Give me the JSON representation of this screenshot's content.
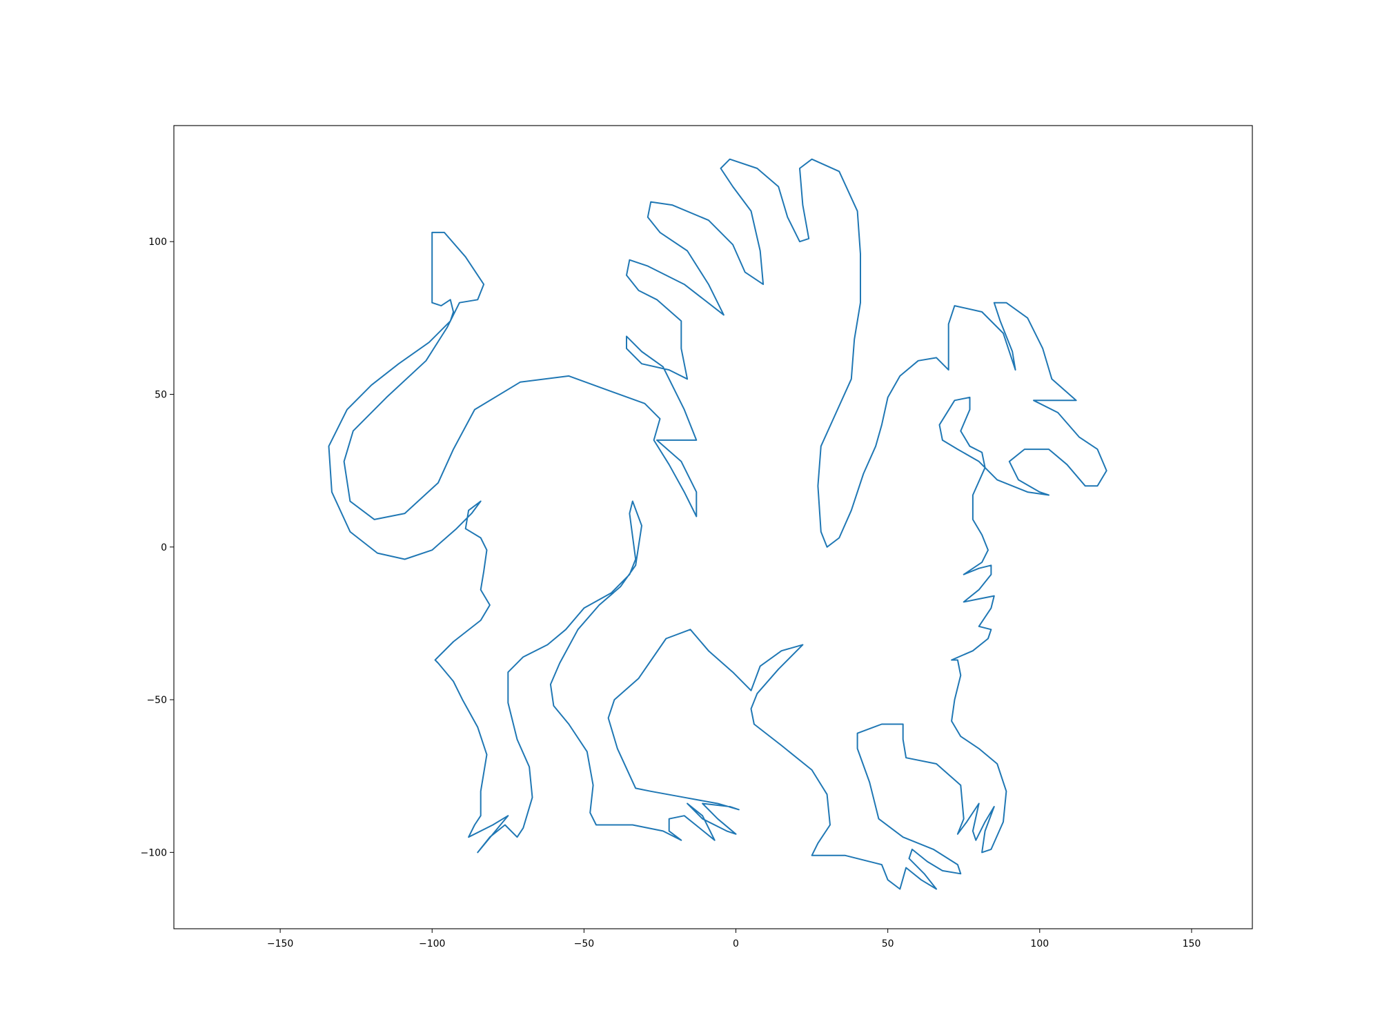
{
  "chart_data": {
    "type": "line",
    "title": "",
    "xlabel": "",
    "ylabel": "",
    "xlim": [
      -185,
      170
    ],
    "ylim": [
      -125,
      138
    ],
    "grid": false,
    "legend": "none",
    "xticks": [
      -150,
      -100,
      -50,
      0,
      50,
      100,
      150
    ],
    "yticks": [
      -100,
      -50,
      0,
      50,
      100
    ],
    "xtick_labels": [
      "−150",
      "−100",
      "−50",
      "0",
      "50",
      "100",
      "150"
    ],
    "ytick_labels": [
      "−100",
      "−50",
      "0",
      "50",
      "100"
    ],
    "series": [
      {
        "color": "#1f77b4",
        "points": [
          [
            -100,
            80
          ],
          [
            -100,
            103
          ],
          [
            -96,
            103
          ],
          [
            -89,
            95
          ],
          [
            -83,
            86
          ],
          [
            -85,
            81
          ],
          [
            -91,
            80
          ],
          [
            -95,
            72
          ],
          [
            -102,
            61
          ],
          [
            -115,
            49
          ],
          [
            -126,
            38
          ],
          [
            -129,
            28
          ],
          [
            -127,
            15
          ],
          [
            -119,
            9
          ],
          [
            -109,
            11
          ],
          [
            -98,
            21
          ],
          [
            -93,
            32
          ],
          [
            -86,
            45
          ],
          [
            -71,
            54
          ],
          [
            -55,
            56
          ],
          [
            -44,
            52
          ],
          [
            -30,
            47
          ],
          [
            -25,
            42
          ],
          [
            -27,
            35
          ],
          [
            -22,
            27
          ],
          [
            -17,
            18
          ],
          [
            -13,
            10
          ],
          [
            -13,
            18
          ],
          [
            -18,
            28
          ],
          [
            -26,
            35
          ],
          [
            -13,
            35
          ],
          [
            -17,
            45
          ],
          [
            -24,
            59
          ],
          [
            -31,
            64
          ],
          [
            -36,
            69
          ],
          [
            -36,
            65
          ],
          [
            -31,
            60
          ],
          [
            -22,
            58
          ],
          [
            -16,
            55
          ],
          [
            -18,
            65
          ],
          [
            -18,
            74
          ],
          [
            -26,
            81
          ],
          [
            -32,
            84
          ],
          [
            -36,
            89
          ],
          [
            -35,
            94
          ],
          [
            -29,
            92
          ],
          [
            -17,
            86
          ],
          [
            -4,
            76
          ],
          [
            -9,
            86
          ],
          [
            -16,
            97
          ],
          [
            -25,
            103
          ],
          [
            -29,
            108
          ],
          [
            -28,
            113
          ],
          [
            -21,
            112
          ],
          [
            -9,
            107
          ],
          [
            -1,
            99
          ],
          [
            3,
            90
          ],
          [
            9,
            86
          ],
          [
            8,
            97
          ],
          [
            5,
            110
          ],
          [
            -1,
            118
          ],
          [
            -5,
            124
          ],
          [
            -2,
            127
          ],
          [
            7,
            124
          ],
          [
            14,
            118
          ],
          [
            17,
            108
          ],
          [
            21,
            100
          ],
          [
            24,
            101
          ],
          [
            22,
            112
          ],
          [
            21,
            124
          ],
          [
            25,
            127
          ],
          [
            34,
            123
          ],
          [
            40,
            110
          ],
          [
            41,
            96
          ],
          [
            41,
            80
          ],
          [
            39,
            68
          ],
          [
            38,
            55
          ],
          [
            33,
            44
          ],
          [
            28,
            33
          ],
          [
            27,
            20
          ],
          [
            28,
            5
          ],
          [
            30,
            0
          ],
          [
            34,
            3
          ],
          [
            38,
            12
          ],
          [
            42,
            24
          ],
          [
            46,
            33
          ],
          [
            48,
            40
          ],
          [
            50,
            49
          ],
          [
            54,
            56
          ],
          [
            60,
            61
          ],
          [
            66,
            62
          ],
          [
            70,
            58
          ],
          [
            70,
            65
          ],
          [
            70,
            73
          ],
          [
            72,
            79
          ],
          [
            81,
            77
          ],
          [
            88,
            70
          ],
          [
            92,
            58
          ],
          [
            91,
            64
          ],
          [
            87,
            74
          ],
          [
            85,
            80
          ],
          [
            89,
            80
          ],
          [
            96,
            75
          ],
          [
            101,
            65
          ],
          [
            104,
            55
          ],
          [
            112,
            48
          ],
          [
            106,
            48
          ],
          [
            98,
            48
          ],
          [
            106,
            44
          ],
          [
            113,
            36
          ],
          [
            119,
            32
          ],
          [
            122,
            25
          ],
          [
            119,
            20
          ],
          [
            115,
            20
          ],
          [
            109,
            27
          ],
          [
            103,
            32
          ],
          [
            95,
            32
          ],
          [
            90,
            28
          ],
          [
            93,
            22
          ],
          [
            100,
            18
          ],
          [
            103,
            17
          ],
          [
            96,
            18
          ],
          [
            86,
            22
          ],
          [
            80,
            28
          ],
          [
            73,
            32
          ],
          [
            68,
            35
          ],
          [
            67,
            40
          ],
          [
            72,
            48
          ],
          [
            77,
            49
          ],
          [
            77,
            45
          ],
          [
            74,
            38
          ],
          [
            77,
            33
          ],
          [
            81,
            31
          ],
          [
            82,
            26
          ],
          [
            78,
            17
          ],
          [
            78,
            9
          ],
          [
            81,
            4
          ],
          [
            83,
            -1
          ],
          [
            81,
            -5
          ],
          [
            75,
            -9
          ],
          [
            80,
            -7
          ],
          [
            84,
            -6
          ],
          [
            84,
            -9
          ],
          [
            80,
            -14
          ],
          [
            75,
            -18
          ],
          [
            80,
            -17
          ],
          [
            85,
            -16
          ],
          [
            84,
            -20
          ],
          [
            80,
            -26
          ],
          [
            84,
            -27
          ],
          [
            83,
            -30
          ],
          [
            78,
            -34
          ],
          [
            71,
            -37
          ],
          [
            73,
            -37
          ],
          [
            74,
            -42
          ],
          [
            72,
            -50
          ],
          [
            71,
            -57
          ],
          [
            74,
            -62
          ],
          [
            80,
            -66
          ],
          [
            86,
            -71
          ],
          [
            89,
            -80
          ],
          [
            88,
            -90
          ],
          [
            84,
            -99
          ],
          [
            81,
            -100
          ],
          [
            82,
            -93
          ],
          [
            85,
            -85
          ],
          [
            82,
            -90
          ],
          [
            79,
            -96
          ],
          [
            78,
            -93
          ],
          [
            80,
            -84
          ],
          [
            76,
            -90
          ],
          [
            73,
            -94
          ],
          [
            75,
            -89
          ],
          [
            74,
            -78
          ],
          [
            66,
            -71
          ],
          [
            56,
            -69
          ],
          [
            55,
            -63
          ],
          [
            55,
            -58
          ],
          [
            48,
            -58
          ],
          [
            40,
            -61
          ],
          [
            40,
            -66
          ],
          [
            44,
            -77
          ],
          [
            47,
            -89
          ],
          [
            55,
            -95
          ],
          [
            65,
            -99
          ],
          [
            73,
            -104
          ],
          [
            74,
            -107
          ],
          [
            68,
            -106
          ],
          [
            63,
            -103
          ],
          [
            58,
            -99
          ],
          [
            57,
            -102
          ],
          [
            62,
            -107
          ],
          [
            66,
            -112
          ],
          [
            61,
            -109
          ],
          [
            56,
            -105
          ],
          [
            54,
            -112
          ],
          [
            50,
            -109
          ],
          [
            48,
            -104
          ],
          [
            36,
            -101
          ],
          [
            25,
            -101
          ],
          [
            27,
            -97
          ],
          [
            31,
            -91
          ],
          [
            30,
            -81
          ],
          [
            25,
            -73
          ],
          [
            15,
            -65
          ],
          [
            6,
            -58
          ],
          [
            5,
            -53
          ],
          [
            7,
            -48
          ],
          [
            14,
            -40
          ],
          [
            22,
            -32
          ],
          [
            15,
            -34
          ],
          [
            8,
            -39
          ],
          [
            5,
            -47
          ],
          [
            -1,
            -41
          ],
          [
            -9,
            -34
          ],
          [
            -15,
            -27
          ],
          [
            -23,
            -30
          ],
          [
            -32,
            -43
          ],
          [
            -40,
            -50
          ],
          [
            -42,
            -56
          ],
          [
            -39,
            -66
          ],
          [
            -33,
            -79
          ],
          [
            -28,
            -80
          ],
          [
            -17,
            -82
          ],
          [
            -6,
            -84
          ],
          [
            1,
            -86
          ],
          [
            -2,
            -85
          ],
          [
            -11,
            -84
          ],
          [
            -6,
            -89
          ],
          [
            0,
            -94
          ],
          [
            -3,
            -93
          ],
          [
            -11,
            -89
          ],
          [
            -16,
            -84
          ],
          [
            -11,
            -88
          ],
          [
            -7,
            -96
          ],
          [
            -12,
            -92
          ],
          [
            -17,
            -88
          ],
          [
            -22,
            -89
          ],
          [
            -22,
            -93
          ],
          [
            -18,
            -96
          ],
          [
            -24,
            -93
          ],
          [
            -34,
            -91
          ],
          [
            -46,
            -91
          ],
          [
            -48,
            -87
          ],
          [
            -47,
            -78
          ],
          [
            -49,
            -67
          ],
          [
            -55,
            -58
          ],
          [
            -60,
            -52
          ],
          [
            -61,
            -45
          ],
          [
            -58,
            -38
          ],
          [
            -52,
            -27
          ],
          [
            -45,
            -19
          ],
          [
            -38,
            -13
          ],
          [
            -33,
            -6
          ],
          [
            -31,
            7
          ],
          [
            -34,
            15
          ],
          [
            -35,
            11
          ],
          [
            -33,
            -4
          ],
          [
            -35,
            -9
          ],
          [
            -41,
            -15
          ],
          [
            -50,
            -20
          ],
          [
            -56,
            -27
          ],
          [
            -62,
            -32
          ],
          [
            -70,
            -36
          ],
          [
            -75,
            -41
          ],
          [
            -75,
            -51
          ],
          [
            -72,
            -63
          ],
          [
            -68,
            -72
          ],
          [
            -67,
            -82
          ],
          [
            -70,
            -92
          ],
          [
            -72,
            -95
          ],
          [
            -76,
            -91
          ],
          [
            -81,
            -95
          ],
          [
            -85,
            -100
          ],
          [
            -80,
            -94
          ],
          [
            -75,
            -88
          ],
          [
            -80,
            -91
          ],
          [
            -88,
            -95
          ],
          [
            -86,
            -91
          ],
          [
            -84,
            -88
          ],
          [
            -84,
            -80
          ],
          [
            -82,
            -68
          ],
          [
            -85,
            -59
          ],
          [
            -90,
            -50
          ],
          [
            -93,
            -44
          ],
          [
            -98,
            -38
          ],
          [
            -99,
            -37
          ],
          [
            -93,
            -31
          ],
          [
            -84,
            -24
          ],
          [
            -81,
            -19
          ],
          [
            -84,
            -14
          ],
          [
            -83,
            -8
          ],
          [
            -82,
            -1
          ],
          [
            -84,
            3
          ],
          [
            -89,
            6
          ],
          [
            -88,
            12
          ],
          [
            -84,
            15
          ],
          [
            -87,
            11
          ],
          [
            -92,
            6
          ],
          [
            -100,
            -1
          ],
          [
            -109,
            -4
          ],
          [
            -118,
            -2
          ],
          [
            -127,
            5
          ],
          [
            -133,
            18
          ],
          [
            -134,
            33
          ],
          [
            -128,
            45
          ],
          [
            -120,
            53
          ],
          [
            -111,
            60
          ],
          [
            -101,
            67
          ],
          [
            -94,
            74
          ],
          [
            -93,
            77
          ],
          [
            -94,
            81
          ],
          [
            -97,
            79
          ],
          [
            -100,
            80
          ]
        ]
      }
    ]
  }
}
